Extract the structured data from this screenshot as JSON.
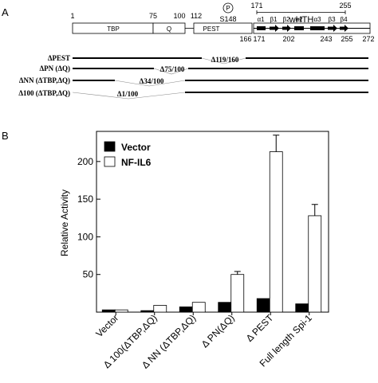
{
  "panel_a": {
    "label": "A",
    "domain_map": {
      "domains": [
        {
          "name": "TBP",
          "start": 1,
          "end": 75
        },
        {
          "name": "Q",
          "start": 75,
          "end": 100
        },
        {
          "name": "PEST",
          "start": 112,
          "end": 166
        }
      ],
      "position_labels_top": [
        "1",
        "75",
        "100",
        "112",
        "171",
        "255"
      ],
      "position_labels_bottom": [
        "166",
        "171",
        "202",
        "243",
        "255",
        "272"
      ],
      "phospho_symbol": "P",
      "phospho_site": "S148",
      "motif_label": "wHTH",
      "structure_elements": [
        "α1",
        "β1",
        "β2",
        "α2",
        "α3",
        "β3",
        "β4"
      ]
    },
    "deletions": [
      {
        "name": "ΔPEST",
        "gap_label": "Δ119/160",
        "gap_start": 119,
        "gap_end": 160
      },
      {
        "name": "ΔPN (ΔQ)",
        "gap_label": "Δ75/100",
        "gap_start": 75,
        "gap_end": 100
      },
      {
        "name": "ΔNN (ΔTBP,ΔQ)",
        "gap_label": "Δ34/100",
        "gap_start": 34,
        "gap_end": 100
      },
      {
        "name": "Δ100 (ΔTBP,ΔQ)",
        "gap_label": "Δ1/100",
        "gap_start": 1,
        "gap_end": 100
      }
    ]
  },
  "panel_b": {
    "label": "B"
  },
  "chart_data": {
    "type": "bar",
    "ylabel": "Relative Activity",
    "xlabel": "",
    "ylim": [
      0,
      240
    ],
    "yticks": [
      50,
      100,
      150,
      200
    ],
    "categories": [
      "Vector",
      "Δ 100(ΔTBP,ΔQ)",
      "Δ NN (ΔTBP,ΔQ)",
      "Δ PN(ΔQ)",
      "Δ PEST",
      "Full length Spi-1"
    ],
    "series": [
      {
        "name": "Vector",
        "color": "#000000",
        "values": [
          3,
          2,
          7,
          13,
          18,
          11
        ],
        "errors": [
          1,
          1,
          1,
          1,
          1,
          1
        ]
      },
      {
        "name": "NF-IL6",
        "color": "#ffffff",
        "values": [
          3,
          9,
          13,
          50,
          213,
          128
        ],
        "errors": [
          1,
          1,
          1,
          4,
          22,
          15
        ]
      }
    ],
    "legend_position": "top-left"
  }
}
